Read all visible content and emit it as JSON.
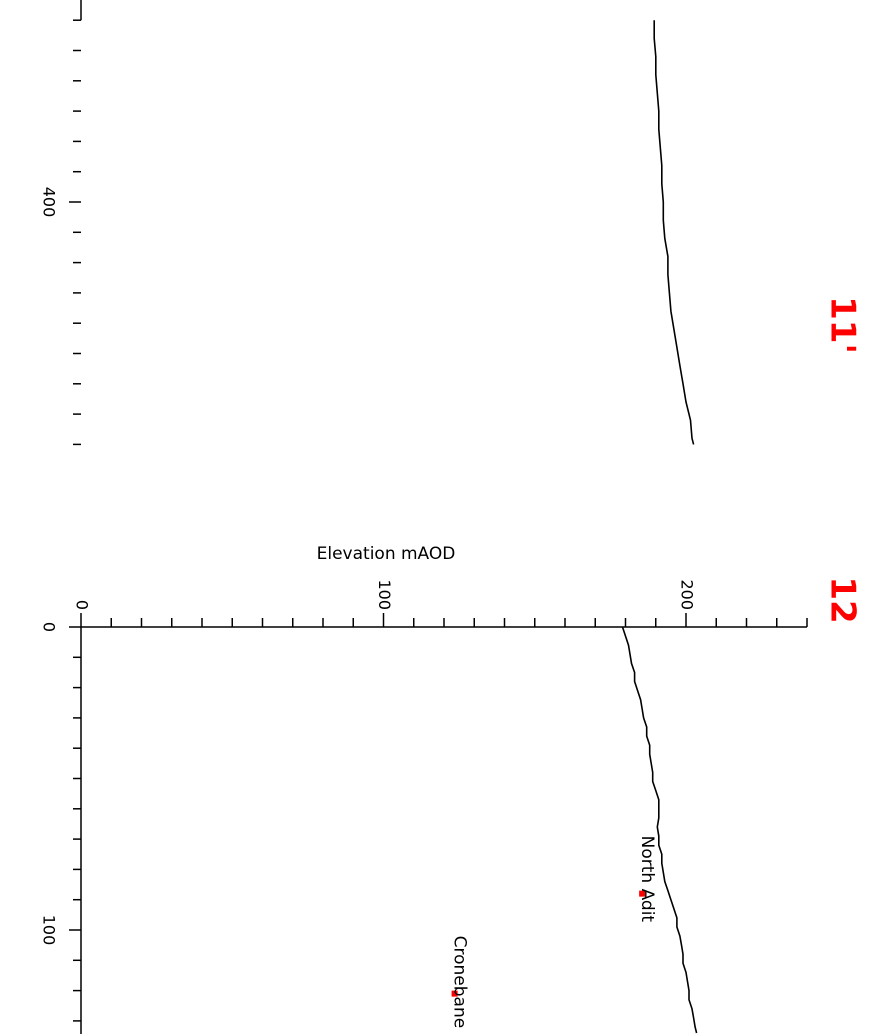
{
  "chart_data": {
    "type": "line",
    "orientation": "rotated-90-clockwise",
    "ylabel": "Elevation mAOD",
    "ylim": [
      0,
      240
    ],
    "yticks_labeled": [
      0,
      100,
      200
    ],
    "ytick_minor_step": 10,
    "xticks_labeled_lower": [
      0,
      100
    ],
    "xticks_labeled_upper": [
      400
    ],
    "x_minor_step": 10,
    "section_labels": [
      {
        "text": "12",
        "color": "#ff0000",
        "panel": "lower"
      },
      {
        "text": "11'",
        "color": "#ff0000",
        "panel": "upper"
      }
    ],
    "panels": [
      {
        "name": "lower",
        "xlim": [
          0,
          134
        ],
        "series": [
          {
            "color": "#000000",
            "x": [
              0,
              3,
              6,
              9,
              12,
              15,
              18,
              21,
              24,
              27,
              30,
              33,
              36,
              39,
              42,
              45,
              48,
              51,
              54,
              57,
              60,
              63,
              66,
              69,
              72,
              75,
              78,
              81,
              84,
              87,
              90,
              93,
              96,
              99,
              102,
              105,
              108,
              111,
              114,
              117,
              120,
              123,
              126,
              129,
              132,
              134
            ],
            "y": [
              179,
              180,
              181,
              181.5,
              182,
              183,
              183,
              184,
              185,
              185.5,
              186,
              187,
              187,
              188,
              188,
              188.5,
              189,
              189,
              190,
              191,
              191,
              191,
              190.5,
              191,
              191,
              192,
              192,
              192.5,
              193,
              194,
              195,
              196,
              197,
              197,
              198,
              198.5,
              199,
              199,
              200,
              200.5,
              201,
              201,
              202,
              202.5,
              203,
              203.5
            ]
          }
        ],
        "points": [
          {
            "label": "North Adit",
            "x": 88,
            "y": 185.5,
            "color": "#ff0000"
          },
          {
            "label": "Cronebane Dee",
            "x": 121,
            "y": 123.5,
            "color": "#ff0000"
          }
        ]
      },
      {
        "name": "upper",
        "xlim": [
          340,
          480
        ],
        "series": [
          {
            "color": "#000000",
            "x": [
              340,
              346,
              352,
              358,
              364,
              370,
              376,
              382,
              388,
              394,
              400,
              406,
              412,
              418,
              424,
              430,
              436,
              442,
              448,
              454,
              460,
              466,
              472,
              478,
              480
            ],
            "y": [
              189.5,
              189.5,
              190,
              190,
              190.5,
              191,
              191,
              191.5,
              192,
              192,
              192.5,
              192.5,
              193,
              194,
              194,
              194.5,
              195,
              196,
              197,
              198,
              199,
              200,
              201.5,
              202,
              202.5
            ]
          }
        ],
        "points": []
      }
    ]
  }
}
